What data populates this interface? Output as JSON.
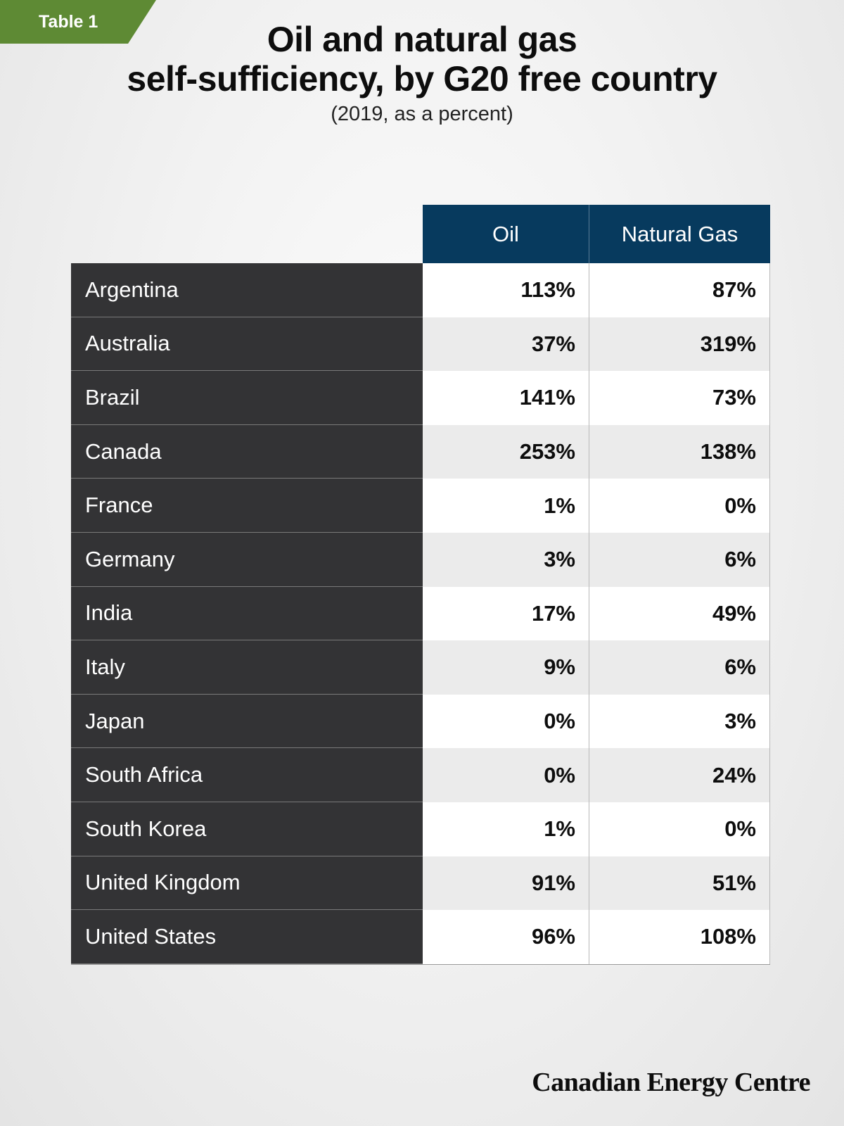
{
  "tag": "Table 1",
  "title_line1": "Oil and natural gas",
  "title_line2": "self-sufficiency, by G20 free country",
  "subtitle": "(2019, as a percent)",
  "brand": "Canadian Energy Centre",
  "colors": {
    "tag_green": "#5e8a34",
    "header_navy": "#073a5e",
    "country_column": "#333335",
    "alt_row": "#ebebeb"
  },
  "chart_data": {
    "type": "table",
    "title": "Oil and natural gas self-sufficiency, by G20 free country",
    "subtitle": "(2019, as a percent)",
    "columns": [
      "",
      "Oil",
      "Natural Gas"
    ],
    "rows": [
      {
        "country": "Argentina",
        "oil": "113%",
        "gas": "87%"
      },
      {
        "country": "Australia",
        "oil": "37%",
        "gas": "319%"
      },
      {
        "country": "Brazil",
        "oil": "141%",
        "gas": "73%"
      },
      {
        "country": "Canada",
        "oil": "253%",
        "gas": "138%"
      },
      {
        "country": "France",
        "oil": "1%",
        "gas": "0%"
      },
      {
        "country": "Germany",
        "oil": "3%",
        "gas": "6%"
      },
      {
        "country": "India",
        "oil": "17%",
        "gas": "49%"
      },
      {
        "country": "Italy",
        "oil": "9%",
        "gas": "6%"
      },
      {
        "country": "Japan",
        "oil": "0%",
        "gas": "3%"
      },
      {
        "country": "South Africa",
        "oil": "0%",
        "gas": "24%"
      },
      {
        "country": "South Korea",
        "oil": "1%",
        "gas": "0%"
      },
      {
        "country": "United Kingdom",
        "oil": "91%",
        "gas": "51%"
      },
      {
        "country": "United States",
        "oil": "96%",
        "gas": "108%"
      }
    ]
  }
}
